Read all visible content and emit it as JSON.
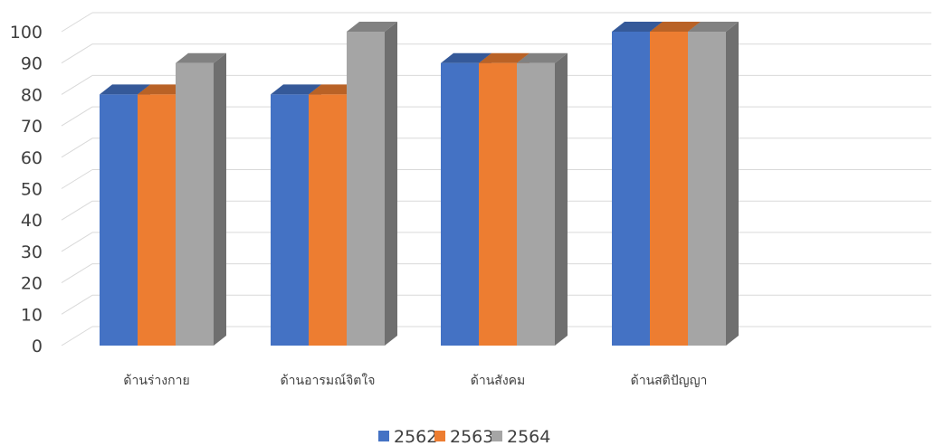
{
  "chart_data": {
    "type": "bar",
    "title": "",
    "xlabel": "",
    "ylabel": "",
    "categories": [
      "ด้านร่างกาย",
      "ด้านอารมณ์จิตใจ",
      "ด้านสังคม",
      "ด้านสติปัญญา"
    ],
    "series": [
      {
        "name": "2562",
        "values": [
          80,
          80,
          90,
          100
        ],
        "color": "#4472C4"
      },
      {
        "name": "2563",
        "values": [
          80,
          80,
          90,
          100
        ],
        "color": "#ED7D31"
      },
      {
        "name": "2564",
        "values": [
          90,
          100,
          90,
          100
        ],
        "color": "#A5A5A5"
      }
    ],
    "ylim": [
      0,
      100
    ],
    "yticks": [
      0,
      10,
      20,
      30,
      40,
      50,
      60,
      70,
      80,
      90,
      100
    ],
    "grid": true,
    "legend": "bottom",
    "style": "3d-clustered-column"
  }
}
